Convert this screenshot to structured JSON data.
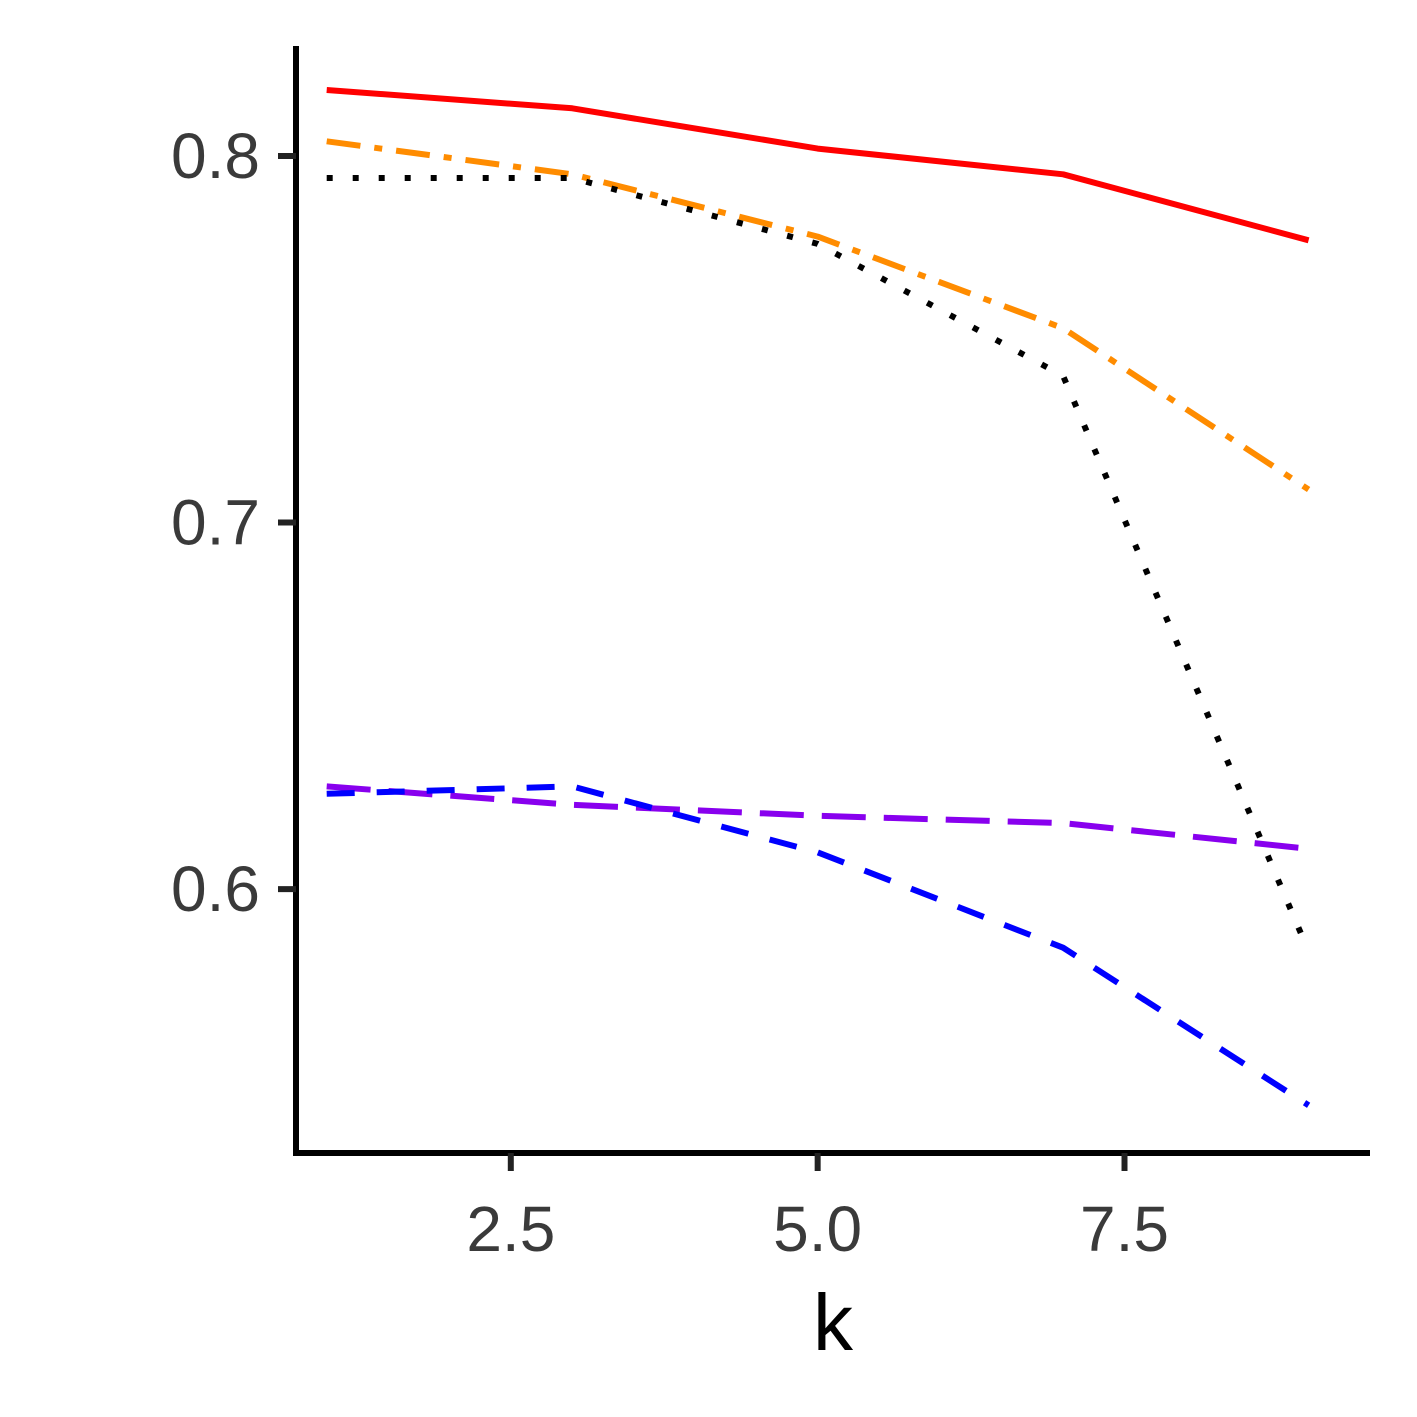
{
  "chart_data": {
    "type": "line",
    "xlabel": "k",
    "ylabel": "",
    "xlim": [
      0.75,
      9.5
    ],
    "ylim": [
      0.528,
      0.83
    ],
    "x_ticks": [
      2.5,
      5.0,
      7.5
    ],
    "x_tick_labels": [
      "2.5",
      "5.0",
      "7.5"
    ],
    "y_ticks": [
      0.6,
      0.7,
      0.8
    ],
    "y_tick_labels": [
      "0.6",
      "0.7",
      "0.8"
    ],
    "grid": false,
    "legend": "none",
    "x": [
      1,
      3,
      5,
      7,
      9
    ],
    "series": [
      {
        "values": [
          0.818,
          0.813,
          0.802,
          0.795,
          0.777
        ],
        "color": "#ff0000",
        "dash": "solid"
      },
      {
        "values": [
          0.804,
          0.795,
          0.778,
          0.753,
          0.709
        ],
        "color": "#ff8c00",
        "dash": "dashdot"
      },
      {
        "values": [
          0.794,
          0.794,
          0.776,
          0.74,
          0.583
        ],
        "color": "#000000",
        "dash": "dotted"
      },
      {
        "values": [
          0.628,
          0.623,
          0.62,
          0.618,
          0.611
        ],
        "color": "#8800ee",
        "dash": "longdash"
      },
      {
        "values": [
          0.626,
          0.628,
          0.61,
          0.584,
          0.541
        ],
        "color": "#0000ff",
        "dash": "dashed"
      }
    ]
  }
}
